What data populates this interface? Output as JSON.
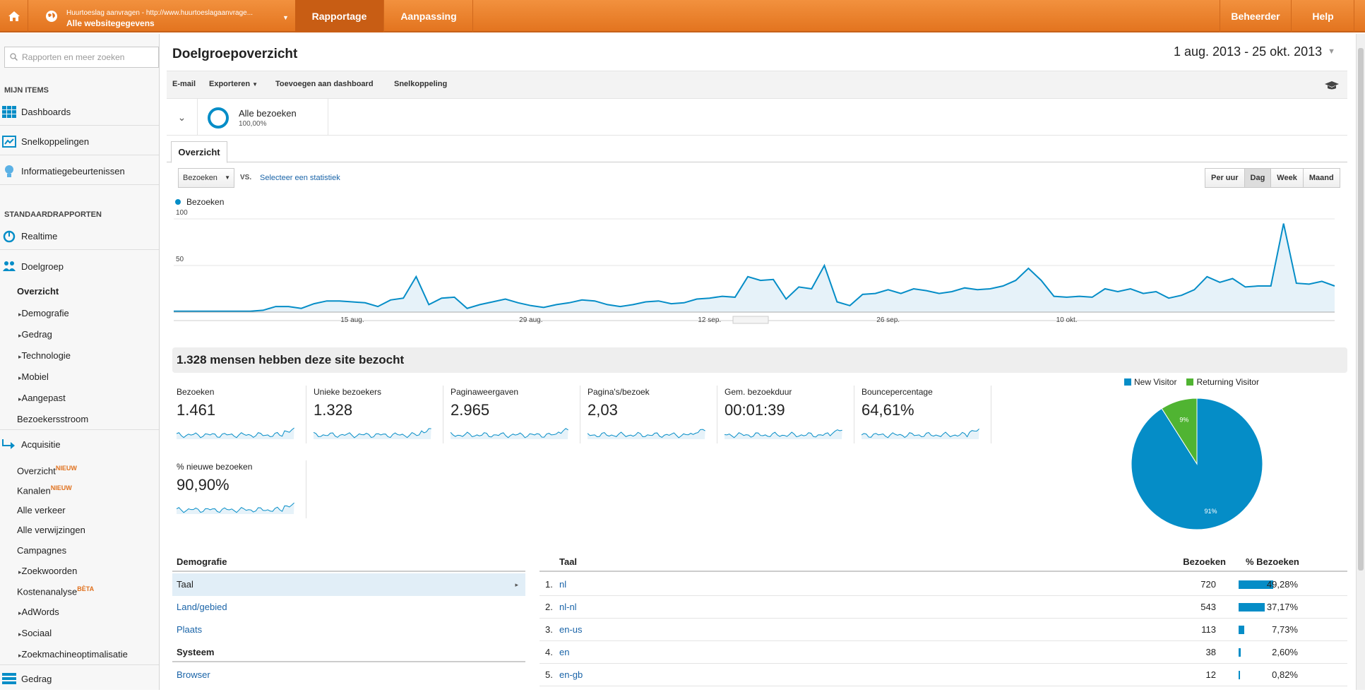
{
  "topbar": {
    "account_line1": "Huurtoeslag aanvragen - http://www.huurtoeslagaanvrage...",
    "account_line2": "Alle websitegegevens",
    "tabs": [
      "Rapportage",
      "Aanpassing"
    ],
    "admin": "Beheerder",
    "help": "Help"
  },
  "sidebar": {
    "search_placeholder": "Rapporten en meer zoeken",
    "my_items_header": "MIJN ITEMS",
    "my_items": [
      "Dashboards",
      "Snelkoppelingen",
      "Informatiegebeurtenissen"
    ],
    "standard_header": "STANDAARDRAPPORTEN",
    "realtime": "Realtime",
    "audience": "Doelgroep",
    "audience_subs": [
      "Overzicht",
      "Demografie",
      "Gedrag",
      "Technologie",
      "Mobiel",
      "Aangepast",
      "Bezoekersstroom"
    ],
    "acquisition": "Acquisitie",
    "acq_subs": [
      "Overzicht",
      "Kanalen",
      "Alle verkeer",
      "Alle verwijzingen",
      "Campagnes",
      "Zoekwoorden",
      "Kostenanalyse",
      "AdWords",
      "Sociaal",
      "Zoekmachineoptimalisatie"
    ],
    "new_badge": "NIEUW",
    "beta_badge": "BÈTA",
    "behavior": "Gedrag"
  },
  "page": {
    "title": "Doelgroepoverzicht",
    "date_range": "1 aug. 2013 - 25 okt. 2013",
    "toolbar": {
      "email": "E-mail",
      "export": "Exporteren",
      "add_dashboard": "Toevoegen aan dashboard",
      "shortcut": "Snelkoppeling"
    },
    "segment": {
      "name": "Alle bezoeken",
      "pct": "100,00%"
    },
    "tab": "Overzicht",
    "metric_select": "Bezoeken",
    "vs": "VS.",
    "select_stat": "Selecteer een statistiek",
    "periods": [
      "Per uur",
      "Dag",
      "Week",
      "Maand"
    ],
    "summary": "1.328 mensen hebben deze site bezocht"
  },
  "chart_data": {
    "type": "line",
    "series_name": "Bezoeken",
    "y_ticks": [
      "100",
      "50"
    ],
    "ylim": [
      0,
      100
    ],
    "x_tick_labels": [
      "15 aug.",
      "29 aug.",
      "12 sep.",
      "26 sep.",
      "10 okt."
    ],
    "values": [
      1,
      1,
      1,
      1,
      1,
      1,
      1,
      2,
      6,
      6,
      4,
      9,
      12,
      12,
      11,
      10,
      6,
      13,
      15,
      38,
      8,
      15,
      16,
      4,
      8,
      11,
      14,
      10,
      7,
      5,
      8,
      10,
      13,
      12,
      8,
      6,
      8,
      11,
      12,
      9,
      10,
      14,
      15,
      17,
      16,
      38,
      34,
      35,
      14,
      27,
      25,
      50,
      11,
      7,
      19,
      20,
      24,
      20,
      25,
      23,
      20,
      22,
      26,
      24,
      25,
      28,
      34,
      47,
      34,
      17,
      16,
      17,
      16,
      25,
      22,
      25,
      20,
      22,
      15,
      18,
      24,
      38,
      32,
      36,
      27,
      28,
      28,
      95,
      31,
      30,
      33,
      28
    ]
  },
  "metrics": [
    {
      "label": "Bezoeken",
      "value": "1.461"
    },
    {
      "label": "Unieke bezoekers",
      "value": "1.328"
    },
    {
      "label": "Paginaweergaven",
      "value": "2.965"
    },
    {
      "label": "Pagina's/bezoek",
      "value": "2,03"
    },
    {
      "label": "Gem. bezoekduur",
      "value": "00:01:39"
    },
    {
      "label": "Bouncepercentage",
      "value": "64,61%"
    },
    {
      "label": "% nieuwe bezoeken",
      "value": "90,90%"
    }
  ],
  "pie": {
    "legend": [
      "New Visitor",
      "Returning Visitor"
    ],
    "values": [
      91,
      9
    ],
    "labels": [
      "91%",
      "9%"
    ],
    "colors": [
      "#058dc7",
      "#50b432"
    ]
  },
  "demographics": {
    "header1": "Demografie",
    "items1": [
      "Taal",
      "Land/gebied",
      "Plaats"
    ],
    "header2": "Systeem",
    "items2": [
      "Browser"
    ]
  },
  "language_table": {
    "col_label": "Taal",
    "col_visits": "Bezoeken",
    "col_pct": "% Bezoeken",
    "rows": [
      {
        "n": "1.",
        "lang": "nl",
        "visits": "720",
        "pct": "49,28%",
        "frac": 0.4928
      },
      {
        "n": "2.",
        "lang": "nl-nl",
        "visits": "543",
        "pct": "37,17%",
        "frac": 0.3717
      },
      {
        "n": "3.",
        "lang": "en-us",
        "visits": "113",
        "pct": "7,73%",
        "frac": 0.0773
      },
      {
        "n": "4.",
        "lang": "en",
        "visits": "38",
        "pct": "2,60%",
        "frac": 0.026
      },
      {
        "n": "5.",
        "lang": "en-gb",
        "visits": "12",
        "pct": "0,82%",
        "frac": 0.0082
      }
    ]
  }
}
